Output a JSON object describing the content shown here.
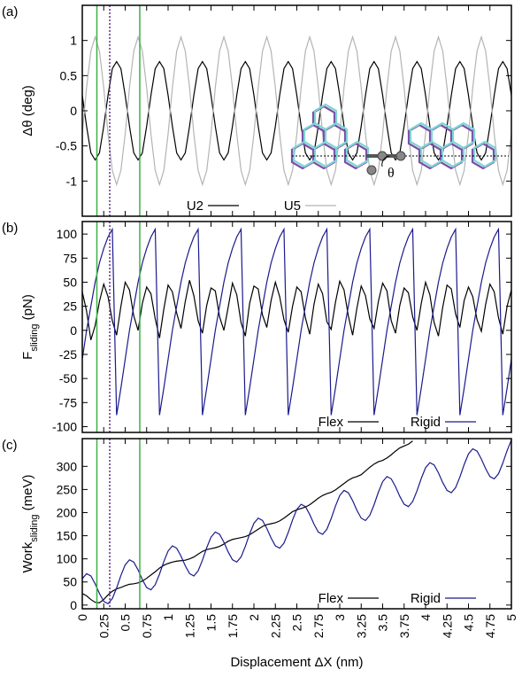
{
  "chart_data": [
    {
      "type": "line",
      "panel_label": "(a)",
      "ylabel": [
        "Δθ (deg)"
      ],
      "legend": "lower center",
      "xlim": [
        0,
        5
      ],
      "xticks": [
        0,
        0.25,
        0.5,
        0.75,
        1,
        1.25,
        1.5,
        1.75,
        2,
        2.25,
        2.5,
        2.75,
        3,
        3.25,
        3.5,
        3.75,
        4,
        4.25,
        4.5,
        4.75,
        5
      ],
      "ylim": [
        -1.5,
        1.5
      ],
      "yticks": [
        -1,
        -0.5,
        0,
        0.5,
        1
      ],
      "inset_label": "θ",
      "x": [
        0,
        0.05,
        0.1,
        0.15,
        0.2,
        0.25,
        0.3,
        0.35,
        0.4,
        0.45,
        0.5,
        0.55,
        0.6,
        0.65,
        0.7,
        0.75,
        0.8,
        0.85,
        0.9,
        0.95,
        1,
        1.05,
        1.1,
        1.15,
        1.2,
        1.25,
        1.3,
        1.35,
        1.4,
        1.45,
        1.5,
        1.55,
        1.6,
        1.65,
        1.7,
        1.75,
        1.8,
        1.85,
        1.9,
        1.95,
        2,
        2.05,
        2.1,
        2.15,
        2.2,
        2.25,
        2.3,
        2.35,
        2.4,
        2.45,
        2.5,
        2.55,
        2.6,
        2.65,
        2.7,
        2.75,
        2.8,
        2.85,
        2.9,
        2.95,
        3,
        3.05,
        3.1,
        3.15,
        3.2,
        3.25,
        3.3,
        3.35,
        3.4,
        3.45,
        3.5,
        3.55,
        3.6,
        3.65,
        3.7,
        3.75,
        3.8,
        3.85,
        3.9,
        3.95,
        4,
        4.05,
        4.1,
        4.15,
        4.2,
        4.25,
        4.3,
        4.35,
        4.4,
        4.45,
        4.5,
        4.55,
        4.6,
        4.65,
        4.7,
        4.75,
        4.8,
        4.85,
        4.9,
        4.95,
        5
      ],
      "series": [
        {
          "name": "U2",
          "color": "#000000",
          "values": [
            0.22,
            -0.22,
            -0.6,
            -0.7,
            -0.6,
            -0.22,
            0.22,
            0.6,
            0.7,
            0.6,
            0.22,
            -0.22,
            -0.6,
            -0.7,
            -0.6,
            -0.22,
            0.22,
            0.6,
            0.7,
            0.6,
            0.22,
            -0.22,
            -0.6,
            -0.7,
            -0.6,
            -0.22,
            0.22,
            0.6,
            0.7,
            0.6,
            0.22,
            -0.22,
            -0.6,
            -0.7,
            -0.6,
            -0.22,
            0.22,
            0.6,
            0.7,
            0.6,
            0.22,
            -0.22,
            -0.6,
            -0.7,
            -0.6,
            -0.22,
            0.22,
            0.6,
            0.7,
            0.6,
            0.22,
            -0.22,
            -0.6,
            -0.7,
            -0.6,
            -0.22,
            0.22,
            0.6,
            0.7,
            0.6,
            0.22,
            -0.22,
            -0.6,
            -0.7,
            -0.6,
            -0.22,
            0.22,
            0.6,
            0.7,
            0.6,
            0.22,
            -0.22,
            -0.6,
            -0.7,
            -0.6,
            -0.22,
            0.22,
            0.6,
            0.7,
            0.6,
            0.22,
            -0.22,
            -0.6,
            -0.7,
            -0.6,
            -0.22,
            0.22,
            0.6,
            0.7,
            0.6,
            0.22,
            -0.22,
            -0.6,
            -0.7,
            -0.6,
            -0.22,
            0.22,
            0.6,
            0.7,
            0.6,
            0.22
          ]
        },
        {
          "name": "U5",
          "color": "#b4b4b4",
          "values": [
            -0.33,
            0.33,
            0.85,
            1.05,
            0.85,
            0.33,
            -0.33,
            -0.85,
            -1.05,
            -0.85,
            -0.33,
            0.33,
            0.85,
            1.05,
            0.85,
            0.33,
            -0.33,
            -0.85,
            -1.05,
            -0.85,
            -0.33,
            0.33,
            0.85,
            1.05,
            0.85,
            0.33,
            -0.33,
            -0.85,
            -1.05,
            -0.85,
            -0.33,
            0.33,
            0.85,
            1.05,
            0.85,
            0.33,
            -0.33,
            -0.85,
            -1.05,
            -0.85,
            -0.33,
            0.33,
            0.85,
            1.05,
            0.85,
            0.33,
            -0.33,
            -0.85,
            -1.05,
            -0.85,
            -0.33,
            0.33,
            0.85,
            1.05,
            0.85,
            0.33,
            -0.33,
            -0.85,
            -1.05,
            -0.85,
            -0.33,
            0.33,
            0.85,
            1.05,
            0.85,
            0.33,
            -0.33,
            -0.85,
            -1.05,
            -0.85,
            -0.33,
            0.33,
            0.85,
            1.05,
            0.85,
            0.33,
            -0.33,
            -0.85,
            -1.05,
            -0.85,
            -0.33,
            0.33,
            0.85,
            1.05,
            0.85,
            0.33,
            -0.33,
            -0.85,
            -1.05,
            -0.85,
            -0.33,
            0.33,
            0.85,
            1.05,
            0.85,
            0.33,
            -0.33,
            -0.85,
            -1.05,
            -0.85,
            -0.33
          ]
        }
      ]
    },
    {
      "type": "line",
      "panel_label": "(b)",
      "ylabel": [
        "F",
        "sliding",
        " (pN)"
      ],
      "legend": "lower right",
      "xlim": [
        0,
        5
      ],
      "xticks": [
        0,
        0.25,
        0.5,
        0.75,
        1,
        1.25,
        1.5,
        1.75,
        2,
        2.25,
        2.5,
        2.75,
        3,
        3.25,
        3.5,
        3.75,
        4,
        4.25,
        4.5,
        4.75,
        5
      ],
      "ylim": [
        -106,
        113
      ],
      "yticks": [
        -100,
        -75,
        -50,
        -25,
        0,
        25,
        50,
        75,
        100
      ],
      "x": [
        0,
        0.05,
        0.1,
        0.15,
        0.2,
        0.25,
        0.3,
        0.35,
        0.4,
        0.45,
        0.5,
        0.55,
        0.6,
        0.65,
        0.7,
        0.75,
        0.8,
        0.85,
        0.9,
        0.95,
        1,
        1.05,
        1.1,
        1.15,
        1.2,
        1.25,
        1.3,
        1.35,
        1.4,
        1.45,
        1.5,
        1.55,
        1.6,
        1.65,
        1.7,
        1.75,
        1.8,
        1.85,
        1.9,
        1.95,
        2,
        2.05,
        2.1,
        2.15,
        2.2,
        2.25,
        2.3,
        2.35,
        2.4,
        2.45,
        2.5,
        2.55,
        2.6,
        2.65,
        2.7,
        2.75,
        2.8,
        2.85,
        2.9,
        2.95,
        3,
        3.05,
        3.1,
        3.15,
        3.2,
        3.25,
        3.3,
        3.35,
        3.4,
        3.45,
        3.5,
        3.55,
        3.6,
        3.65,
        3.7,
        3.75,
        3.8,
        3.85,
        3.9,
        3.95,
        4,
        4.05,
        4.1,
        4.15,
        4.2,
        4.25,
        4.3,
        4.35,
        4.4,
        4.45,
        4.5,
        4.55,
        4.6,
        4.65,
        4.7,
        4.75,
        4.8,
        4.85,
        4.9,
        4.95,
        5
      ],
      "series": [
        {
          "name": "Flex",
          "color": "#000000",
          "values": [
            40,
            20,
            -10,
            5,
            30,
            48,
            35,
            10,
            -5,
            25,
            50,
            42,
            15,
            0,
            28,
            45,
            38,
            12,
            -8,
            22,
            47,
            40,
            18,
            2,
            30,
            52,
            36,
            10,
            -3,
            26,
            44,
            41,
            14,
            0,
            24,
            49,
            37,
            8,
            -6,
            28,
            46,
            43,
            16,
            3,
            31,
            50,
            35,
            11,
            -2,
            25,
            45,
            40,
            13,
            -4,
            27,
            48,
            38,
            9,
            1,
            29,
            51,
            42,
            15,
            -5,
            23,
            46,
            36,
            12,
            2,
            30,
            49,
            41,
            10,
            -3,
            26,
            44,
            39,
            14,
            0,
            28,
            50,
            37,
            8,
            -6,
            24,
            47,
            43,
            17,
            3,
            31,
            45,
            35,
            11,
            -1,
            27,
            48,
            40,
            13,
            -4,
            25,
            42
          ]
        },
        {
          "name": "Rigid",
          "color": "#1a1a8c",
          "values": [
            -30,
            0,
            25,
            50,
            70,
            85,
            97,
            105,
            -88,
            -60,
            -30,
            0,
            25,
            50,
            70,
            85,
            97,
            105,
            -88,
            -60,
            -30,
            0,
            25,
            50,
            70,
            85,
            97,
            105,
            -88,
            -60,
            -30,
            0,
            25,
            50,
            70,
            85,
            97,
            105,
            -88,
            -60,
            -30,
            0,
            25,
            50,
            70,
            85,
            97,
            105,
            -88,
            -60,
            -30,
            0,
            25,
            50,
            70,
            85,
            97,
            105,
            -88,
            -60,
            -30,
            0,
            25,
            50,
            70,
            85,
            97,
            105,
            -88,
            -60,
            -30,
            0,
            25,
            50,
            70,
            85,
            97,
            105,
            -88,
            -60,
            -30,
            0,
            25,
            50,
            70,
            85,
            97,
            105,
            -88,
            -60,
            -30,
            0,
            25,
            50,
            70,
            85,
            97,
            105,
            -88,
            -60,
            -30
          ]
        }
      ]
    },
    {
      "type": "line",
      "panel_label": "(c)",
      "ylabel": [
        "Work",
        "sliding",
        " (meV)"
      ],
      "legend": "lower right",
      "xlabel": "Displacement ΔX (nm)",
      "xlim": [
        0,
        5
      ],
      "xticks": [
        0,
        0.25,
        0.5,
        0.75,
        1,
        1.25,
        1.5,
        1.75,
        2,
        2.25,
        2.5,
        2.75,
        3,
        3.25,
        3.5,
        3.75,
        4,
        4.25,
        4.5,
        4.75,
        5
      ],
      "ylim": [
        -8,
        360
      ],
      "yticks": [
        0,
        50,
        100,
        150,
        200,
        250,
        300
      ],
      "x": [
        0,
        0.05,
        0.1,
        0.15,
        0.2,
        0.25,
        0.3,
        0.35,
        0.4,
        0.45,
        0.5,
        0.55,
        0.6,
        0.65,
        0.7,
        0.75,
        0.8,
        0.85,
        0.9,
        0.95,
        1,
        1.05,
        1.1,
        1.15,
        1.2,
        1.25,
        1.3,
        1.35,
        1.4,
        1.45,
        1.5,
        1.55,
        1.6,
        1.65,
        1.7,
        1.75,
        1.8,
        1.85,
        1.9,
        1.95,
        2,
        2.05,
        2.1,
        2.15,
        2.2,
        2.25,
        2.3,
        2.35,
        2.4,
        2.45,
        2.5,
        2.55,
        2.6,
        2.65,
        2.7,
        2.75,
        2.8,
        2.85,
        2.9,
        2.95,
        3,
        3.05,
        3.1,
        3.15,
        3.2,
        3.25,
        3.3,
        3.35,
        3.4,
        3.45,
        3.5,
        3.55,
        3.6,
        3.65,
        3.7,
        3.75,
        3.8,
        3.85,
        3.9,
        3.95,
        4,
        4.05,
        4.1,
        4.15,
        4.2,
        4.25,
        4.3,
        4.35,
        4.4,
        4.45,
        4.5,
        4.55,
        4.6,
        4.65,
        4.7,
        4.75,
        4.8,
        4.85,
        4.9,
        4.95,
        5
      ],
      "series": [
        {
          "name": "Flex",
          "color": "#000000",
          "values": [
            25,
            20,
            12,
            6,
            5,
            12,
            22,
            30,
            35,
            38,
            42,
            45,
            46,
            48,
            52,
            58,
            65,
            72,
            80,
            86,
            90,
            93,
            95,
            96,
            97,
            100,
            104,
            110,
            116,
            120,
            122,
            124,
            127,
            132,
            138,
            142,
            144,
            146,
            148,
            152,
            158,
            164,
            170,
            174,
            176,
            178,
            182,
            188,
            195,
            202,
            206,
            209,
            212,
            217,
            224,
            231,
            237,
            241,
            244,
            249,
            256,
            263,
            270,
            275,
            278,
            282,
            290,
            298,
            305,
            310,
            313,
            318,
            325,
            333,
            340,
            344,
            348,
            355,
            null,
            null,
            null,
            null,
            null,
            null,
            null,
            null,
            null,
            null,
            null,
            null,
            null,
            null,
            null,
            null,
            null,
            null,
            null,
            null,
            null,
            null,
            null
          ]
        },
        {
          "name": "Rigid",
          "color": "#1a1a8c",
          "values": [
            57,
            68,
            63,
            46,
            25,
            8,
            3,
            14,
            37,
            64,
            87,
            98,
            93,
            76,
            55,
            38,
            33,
            44,
            67,
            94,
            117,
            128,
            123,
            106,
            85,
            68,
            63,
            74,
            97,
            124,
            147,
            158,
            153,
            136,
            115,
            98,
            93,
            104,
            127,
            154,
            177,
            188,
            183,
            166,
            145,
            128,
            123,
            134,
            157,
            184,
            207,
            218,
            213,
            196,
            175,
            158,
            153,
            164,
            187,
            214,
            237,
            248,
            243,
            226,
            205,
            188,
            183,
            194,
            217,
            244,
            267,
            278,
            273,
            256,
            235,
            218,
            213,
            224,
            247,
            274,
            297,
            308,
            303,
            286,
            265,
            248,
            243,
            254,
            277,
            304,
            327,
            338,
            333,
            316,
            295,
            278,
            273,
            284,
            307,
            334,
            357
          ]
        }
      ]
    }
  ],
  "reference_lines": [
    {
      "x": 0.17,
      "color": "#3cb043",
      "style": "solid"
    },
    {
      "x": 0.32,
      "color": "#5a2d91",
      "style": "dotted"
    },
    {
      "x": 0.67,
      "color": "#3cb043",
      "style": "solid"
    }
  ]
}
